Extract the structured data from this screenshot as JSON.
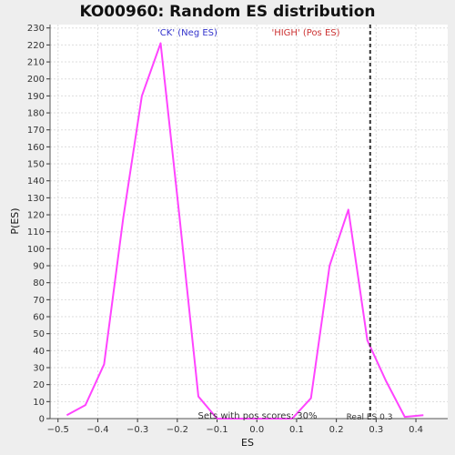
{
  "chart_data": {
    "type": "line",
    "title": "KO00960: Random ES distribution",
    "xlabel": "ES",
    "ylabel": "P(ES)",
    "xlim": [
      -0.52,
      0.48
    ],
    "ylim": [
      0,
      232
    ],
    "x_ticks": [
      -0.5,
      -0.4,
      -0.3,
      -0.2,
      -0.1,
      0.0,
      0.1,
      0.2,
      0.3,
      0.4
    ],
    "x_tick_labels": [
      "−0.5",
      "−0.4",
      "−0.3",
      "−0.2",
      "−0.1",
      "0.0",
      "0.1",
      "0.2",
      "0.3",
      "0.4"
    ],
    "y_ticks": [
      0,
      10,
      20,
      30,
      40,
      50,
      60,
      70,
      80,
      90,
      100,
      110,
      120,
      130,
      140,
      150,
      160,
      170,
      180,
      190,
      200,
      210,
      220,
      230
    ],
    "grid": true,
    "series": [
      {
        "color": "#ff44ff",
        "x": [
          -0.478,
          -0.431,
          -0.384,
          -0.336,
          -0.289,
          -0.242,
          -0.195,
          -0.147,
          -0.1,
          -0.053,
          -0.006,
          0.041,
          0.089,
          0.136,
          0.183,
          0.23,
          0.278,
          0.325,
          0.372,
          0.419
        ],
        "y": [
          2,
          8,
          32,
          118,
          190,
          221,
          120,
          13,
          0,
          0,
          0,
          0,
          0,
          12,
          90,
          123,
          46,
          22,
          1,
          2
        ]
      }
    ],
    "annotations": {
      "neg_label": "'CK' (Neg ES)",
      "neg_color": "#3333cc",
      "pos_label": "'HIGH' (Pos ES)",
      "pos_color": "#cc3333",
      "pos_scores_text": "Sets with pos scores: 30%",
      "real_es_text": "Real ES 0.3",
      "real_es_value": 0.285
    }
  }
}
